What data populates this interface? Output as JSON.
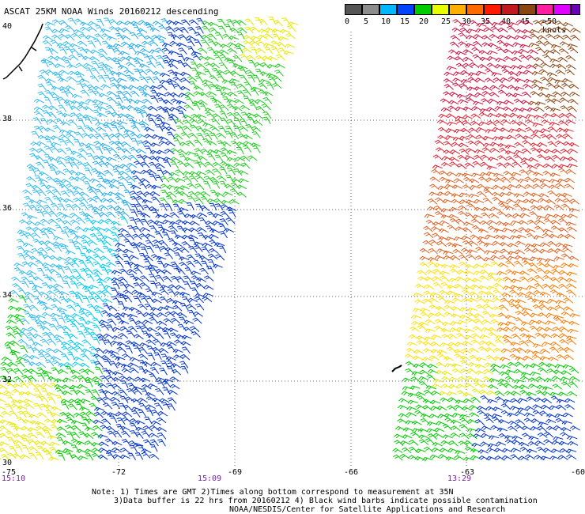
{
  "title": "ASCAT 25KM NOAA Winds 20160212 descending",
  "colorbar": {
    "swatches": [
      "#555555",
      "#8c8c8c",
      "#00b8ff",
      "#0044ff",
      "#00cc00",
      "#e8ff00",
      "#ffb000",
      "#ff6a00",
      "#ff1a00",
      "#c21820",
      "#8b4513",
      "#ff1ea0",
      "#e000ff",
      "#6a00b8"
    ],
    "labels": [
      "0",
      "5",
      "10",
      "15",
      "20",
      "25",
      "30",
      "35",
      "40",
      "45",
      ">50 knots"
    ]
  },
  "latitudes": [
    "40",
    "38",
    "36",
    "34",
    "32",
    "30"
  ],
  "longitudes": [
    "-75",
    "-72",
    "-69",
    "-66",
    "-63",
    "-60"
  ],
  "times": [
    "15:10",
    "15:09",
    "13:29"
  ],
  "notes": [
    "Note: 1) Times are GMT 2)Times along bottom correspond to measurement at 35N",
    "3)Data buffer is 22 hrs from 20160212 4) Black wind barbs indicate possible contamination",
    "NOAA/NESDIS/Center for Satellite Applications and Research"
  ]
}
